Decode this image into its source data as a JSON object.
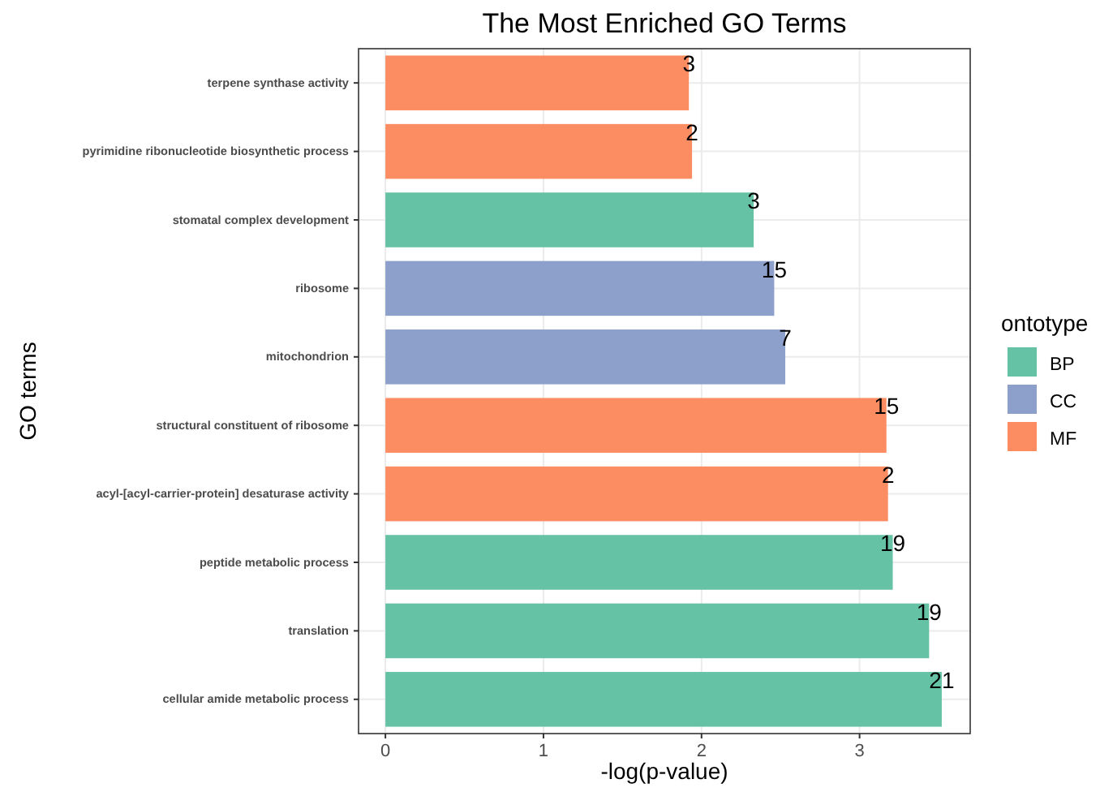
{
  "chart_data": {
    "type": "bar",
    "orientation": "horizontal",
    "stacked": true,
    "title": "The Most Enriched GO Terms",
    "xlabel": "-log(p-value)",
    "ylabel": "GO terms",
    "legend_title": "ontotype",
    "legend": "right",
    "grid": true,
    "categories": [
      "terpene synthase activity",
      "pyrimidine ribonucleotide biosynthetic process",
      "stomatal complex development",
      "ribosome",
      "mitochondrion",
      "structural constituent of ribosome",
      "acyl-[acyl-carrier-protein] desaturase activity",
      "peptide metabolic process",
      "translation",
      "cellular amide metabolic process"
    ],
    "xlim": [
      -0.17,
      3.7
    ],
    "xticks": [
      0,
      1,
      2,
      3
    ],
    "series": [
      {
        "name": "BP",
        "color": "#66c2a5",
        "values": [
          null,
          null,
          2.33,
          null,
          null,
          null,
          null,
          3.21,
          3.44,
          3.52
        ]
      },
      {
        "name": "CC",
        "color": "#8da0cb",
        "values": [
          null,
          null,
          null,
          2.46,
          2.53,
          null,
          null,
          null,
          null,
          null
        ]
      },
      {
        "name": "MF",
        "color": "#fc8d62",
        "values": [
          1.92,
          1.94,
          null,
          null,
          null,
          3.17,
          3.18,
          null,
          null,
          null
        ]
      }
    ],
    "annotations": [
      {
        "text": "3",
        "x": 1.92,
        "y": "terpene synthase activity"
      },
      {
        "text": "2",
        "x": 1.94,
        "y": "pyrimidine ribonucleotide biosynthetic process"
      },
      {
        "text": "3",
        "x": 2.33,
        "y": "stomatal complex development"
      },
      {
        "text": "15",
        "x": 2.46,
        "y": "ribosome"
      },
      {
        "text": "7",
        "x": 2.53,
        "y": "mitochondrion"
      },
      {
        "text": "15",
        "x": 3.17,
        "y": "structural constituent of ribosome"
      },
      {
        "text": "2",
        "x": 3.18,
        "y": "acyl-[acyl-carrier-protein] desaturase activity"
      },
      {
        "text": "19",
        "x": 3.21,
        "y": "peptide metabolic process"
      },
      {
        "text": "19",
        "x": 3.44,
        "y": "translation"
      },
      {
        "text": "21",
        "x": 3.52,
        "y": "cellular amide metabolic process"
      }
    ]
  }
}
